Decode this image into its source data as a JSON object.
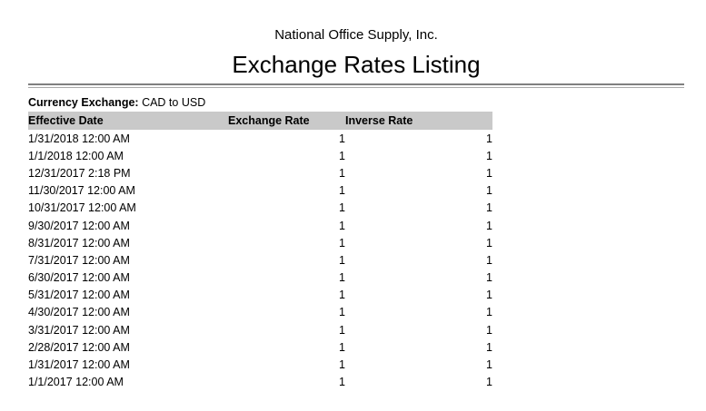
{
  "report": {
    "company": "National Office Supply, Inc.",
    "title": "Exchange Rates Listing",
    "filter_label": "Currency Exchange:",
    "filter_value": "CAD to USD"
  },
  "table": {
    "columns": [
      {
        "label": "Effective Date",
        "align": "left"
      },
      {
        "label": "Exchange Rate",
        "align": "right"
      },
      {
        "label": "Inverse Rate",
        "align": "right"
      }
    ],
    "rows": [
      [
        "1/31/2018 12:00 AM",
        "1",
        "1"
      ],
      [
        "1/1/2018 12:00 AM",
        "1",
        "1"
      ],
      [
        "12/31/2017 2:18 PM",
        "1",
        "1"
      ],
      [
        "11/30/2017 12:00 AM",
        "1",
        "1"
      ],
      [
        "10/31/2017 12:00 AM",
        "1",
        "1"
      ],
      [
        "9/30/2017 12:00 AM",
        "1",
        "1"
      ],
      [
        "8/31/2017 12:00 AM",
        "1",
        "1"
      ],
      [
        "7/31/2017 12:00 AM",
        "1",
        "1"
      ],
      [
        "6/30/2017 12:00 AM",
        "1",
        "1"
      ],
      [
        "5/31/2017 12:00 AM",
        "1",
        "1"
      ],
      [
        "4/30/2017 12:00 AM",
        "1",
        "1"
      ],
      [
        "3/31/2017 12:00 AM",
        "1",
        "1"
      ],
      [
        "2/28/2017 12:00 AM",
        "1",
        "1"
      ],
      [
        "1/31/2017 12:00 AM",
        "1",
        "1"
      ],
      [
        "1/1/2017 12:00 AM",
        "1",
        "1"
      ]
    ]
  },
  "colors": {
    "header_bg": "#c9c9c9",
    "rule_dark": "#7f7f7f",
    "rule_light": "#a9a9a9",
    "text": "#000000"
  }
}
